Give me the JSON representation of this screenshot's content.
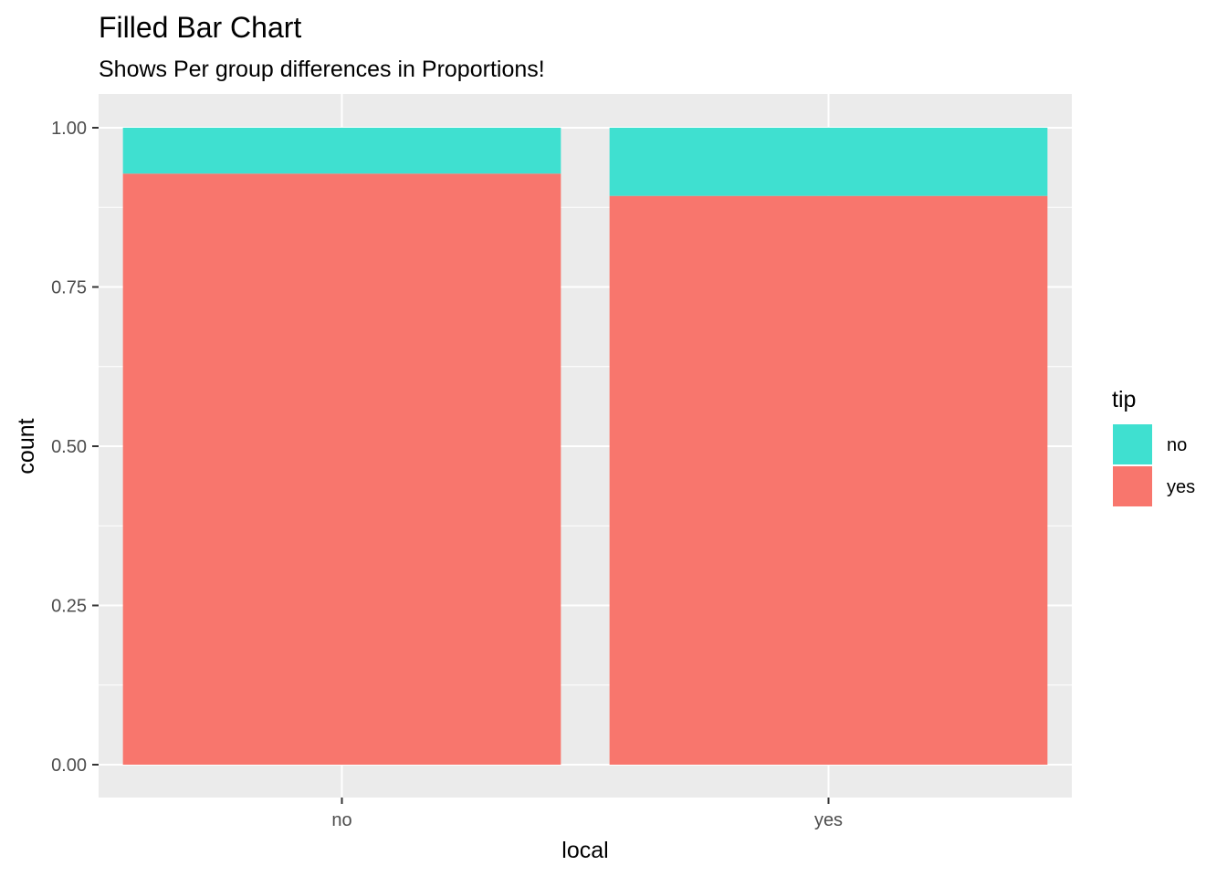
{
  "chart_data": {
    "type": "bar",
    "stacked": true,
    "position": "fill",
    "title": "Filled Bar Chart",
    "subtitle": "Shows Per group differences in Proportions!",
    "xlabel": "local",
    "ylabel": "count",
    "categories": [
      "no",
      "yes"
    ],
    "series": [
      {
        "name": "yes",
        "values": [
          0.928,
          0.893
        ],
        "color": "#F8766D"
      },
      {
        "name": "no",
        "values": [
          0.072,
          0.107
        ],
        "color": "#3FE0D0"
      }
    ],
    "ylim": [
      0,
      1.0
    ],
    "yticks": [
      "0.00",
      "0.25",
      "0.50",
      "0.75",
      "1.00"
    ],
    "grid": true,
    "panel_background": "#EBEBEB",
    "legend": {
      "title": "tip",
      "position": "right",
      "entries": [
        {
          "label": "no",
          "color": "#3FE0D0"
        },
        {
          "label": "yes",
          "color": "#F8766D"
        }
      ]
    }
  }
}
